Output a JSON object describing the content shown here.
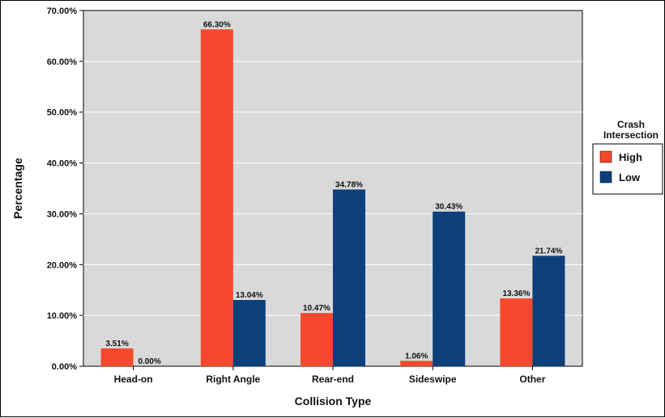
{
  "chart_data": {
    "type": "bar",
    "categories": [
      "Head-on",
      "Right Angle",
      "Rear-end",
      "Sideswipe",
      "Other"
    ],
    "series": [
      {
        "name": "High",
        "color": "#f5492d",
        "values": [
          3.51,
          66.3,
          10.47,
          1.06,
          13.36
        ],
        "labels": [
          "3.51%",
          "66.30%",
          "10.47%",
          "1.06%",
          "13.36%"
        ]
      },
      {
        "name": "Low",
        "color": "#0d3f7a",
        "values": [
          0.0,
          13.04,
          34.78,
          30.43,
          21.74
        ],
        "labels": [
          "0.00%",
          "13.04%",
          "34.78%",
          "30.43%",
          "21.74%"
        ]
      }
    ],
    "ylim": [
      0,
      70
    ],
    "yticks": [
      0,
      10,
      20,
      30,
      40,
      50,
      60,
      70
    ],
    "ytick_labels": [
      "0.00%",
      "10.00%",
      "20.00%",
      "30.00%",
      "40.00%",
      "50.00%",
      "60.00%",
      "70.00%"
    ],
    "xlabel": "Collision Type",
    "ylabel": "Percentage",
    "grid": "horizontal",
    "legend": {
      "title_line1": "Crash",
      "title_line2": "Intersection",
      "placement": "right"
    },
    "plot_background": "#d9d9d9"
  }
}
